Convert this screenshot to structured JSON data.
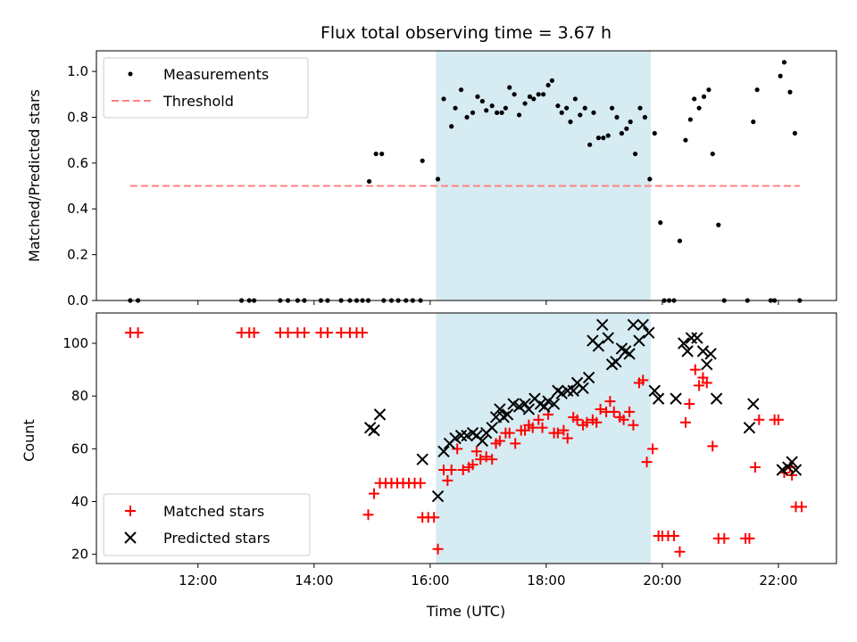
{
  "chart_data": [
    {
      "type": "scatter",
      "title": "Flux total observing time = 3.67 h",
      "xlabel": "",
      "ylabel": "Matched/Predicted stars",
      "xlim": [
        "10:15",
        "23:00"
      ],
      "ylim": [
        0,
        1.09
      ],
      "yticks": [
        "0.0",
        "0.2",
        "0.4",
        "0.6",
        "0.8",
        "1.0"
      ],
      "highlight": {
        "from": "16:06",
        "to": "19:48",
        "color": "#add8e6"
      },
      "legend_position": "top-left",
      "series": [
        {
          "name": "Measurements",
          "marker": "dot",
          "color": "#000000",
          "points": [
            [
              "10:50",
              0
            ],
            [
              "10:58",
              0
            ],
            [
              "12:45",
              0
            ],
            [
              "12:53",
              0
            ],
            [
              "12:58",
              0
            ],
            [
              "13:25",
              0
            ],
            [
              "13:33",
              0
            ],
            [
              "13:43",
              0
            ],
            [
              "13:50",
              0
            ],
            [
              "14:07",
              0
            ],
            [
              "14:14",
              0
            ],
            [
              "14:28",
              0
            ],
            [
              "14:37",
              0
            ],
            [
              "14:44",
              0
            ],
            [
              "14:50",
              0
            ],
            [
              "14:56",
              0
            ],
            [
              "15:12",
              0
            ],
            [
              "15:20",
              0
            ],
            [
              "15:27",
              0
            ],
            [
              "15:35",
              0
            ],
            [
              "15:42",
              0
            ],
            [
              "15:50",
              0
            ],
            [
              "14:57",
              0.52
            ],
            [
              "15:04",
              0.64
            ],
            [
              "15:10",
              0.64
            ],
            [
              "15:52",
              0.61
            ],
            [
              "16:08",
              0.53
            ],
            [
              "16:14",
              0.88
            ],
            [
              "16:22",
              0.76
            ],
            [
              "16:26",
              0.84
            ],
            [
              "16:32",
              0.92
            ],
            [
              "16:38",
              0.8
            ],
            [
              "16:44",
              0.82
            ],
            [
              "16:49",
              0.89
            ],
            [
              "16:54",
              0.87
            ],
            [
              "16:58",
              0.83
            ],
            [
              "17:04",
              0.85
            ],
            [
              "17:09",
              0.82
            ],
            [
              "17:14",
              0.82
            ],
            [
              "17:18",
              0.84
            ],
            [
              "17:22",
              0.93
            ],
            [
              "17:27",
              0.9
            ],
            [
              "17:32",
              0.81
            ],
            [
              "17:38",
              0.86
            ],
            [
              "17:43",
              0.89
            ],
            [
              "17:47",
              0.88
            ],
            [
              "17:52",
              0.9
            ],
            [
              "17:57",
              0.9
            ],
            [
              "18:02",
              0.94
            ],
            [
              "18:06",
              0.96
            ],
            [
              "18:12",
              0.85
            ],
            [
              "18:16",
              0.82
            ],
            [
              "18:21",
              0.84
            ],
            [
              "18:25",
              0.78
            ],
            [
              "18:30",
              0.88
            ],
            [
              "18:35",
              0.81
            ],
            [
              "18:40",
              0.84
            ],
            [
              "18:45",
              0.68
            ],
            [
              "18:49",
              0.82
            ],
            [
              "18:54",
              0.71
            ],
            [
              "18:59",
              0.71
            ],
            [
              "19:04",
              0.72
            ],
            [
              "19:08",
              0.84
            ],
            [
              "19:13",
              0.8
            ],
            [
              "19:18",
              0.73
            ],
            [
              "19:23",
              0.75
            ],
            [
              "19:27",
              0.78
            ],
            [
              "19:32",
              0.64
            ],
            [
              "19:37",
              0.84
            ],
            [
              "19:42",
              0.8
            ],
            [
              "19:47",
              0.53
            ],
            [
              "19:52",
              0.73
            ],
            [
              "19:58",
              0.34
            ],
            [
              "20:02",
              0
            ],
            [
              "20:07",
              0
            ],
            [
              "20:12",
              0
            ],
            [
              "20:18",
              0.26
            ],
            [
              "20:24",
              0.7
            ],
            [
              "20:29",
              0.79
            ],
            [
              "20:33",
              0.88
            ],
            [
              "20:38",
              0.84
            ],
            [
              "20:43",
              0.89
            ],
            [
              "20:48",
              0.92
            ],
            [
              "20:52",
              0.64
            ],
            [
              "20:58",
              0.33
            ],
            [
              "21:04",
              0
            ],
            [
              "21:28",
              0
            ],
            [
              "21:34",
              0.78
            ],
            [
              "21:38",
              0.92
            ],
            [
              "21:52",
              0
            ],
            [
              "21:56",
              0
            ],
            [
              "22:02",
              0.98
            ],
            [
              "22:06",
              1.04
            ],
            [
              "22:12",
              0.91
            ],
            [
              "22:17",
              0.73
            ],
            [
              "22:22",
              0
            ]
          ]
        },
        {
          "name": "Threshold",
          "style": "dashed",
          "color": "#ff8080",
          "points": [
            [
              "10:50",
              0.5
            ],
            [
              "22:22",
              0.5
            ]
          ]
        }
      ]
    },
    {
      "type": "scatter",
      "title": "",
      "xlabel": "Time (UTC)",
      "ylabel": "Count",
      "xlim": [
        "10:15",
        "23:00"
      ],
      "ylim": [
        16.5,
        111.5
      ],
      "xticks": [
        "12:00",
        "14:00",
        "16:00",
        "18:00",
        "20:00",
        "22:00"
      ],
      "yticks": [
        "20",
        "40",
        "60",
        "80",
        "100"
      ],
      "highlight": {
        "from": "16:06",
        "to": "19:48",
        "color": "#add8e6"
      },
      "legend_position": "bottom-left",
      "series": [
        {
          "name": "Matched stars",
          "marker": "plus",
          "color": "#ff0000",
          "points": [
            [
              "10:50",
              104
            ],
            [
              "10:58",
              104
            ],
            [
              "12:45",
              104
            ],
            [
              "12:53",
              104
            ],
            [
              "12:58",
              104
            ],
            [
              "13:25",
              104
            ],
            [
              "13:33",
              104
            ],
            [
              "13:43",
              104
            ],
            [
              "13:50",
              104
            ],
            [
              "14:07",
              104
            ],
            [
              "14:14",
              104
            ],
            [
              "14:28",
              104
            ],
            [
              "14:37",
              104
            ],
            [
              "14:44",
              104
            ],
            [
              "14:50",
              104
            ],
            [
              "14:56",
              35
            ],
            [
              "15:02",
              43
            ],
            [
              "15:08",
              47
            ],
            [
              "15:14",
              47
            ],
            [
              "15:20",
              47
            ],
            [
              "15:26",
              47
            ],
            [
              "15:32",
              47
            ],
            [
              "15:38",
              47
            ],
            [
              "15:44",
              47
            ],
            [
              "15:50",
              47
            ],
            [
              "15:52",
              34
            ],
            [
              "15:58",
              34
            ],
            [
              "16:04",
              34
            ],
            [
              "16:08",
              22
            ],
            [
              "16:14",
              52
            ],
            [
              "16:18",
              48
            ],
            [
              "16:22",
              52
            ],
            [
              "16:28",
              60
            ],
            [
              "16:34",
              52
            ],
            [
              "16:40",
              53
            ],
            [
              "16:44",
              54
            ],
            [
              "16:48",
              59
            ],
            [
              "16:52",
              56
            ],
            [
              "16:58",
              57
            ],
            [
              "17:04",
              56
            ],
            [
              "17:08",
              62
            ],
            [
              "17:12",
              63
            ],
            [
              "17:18",
              66
            ],
            [
              "17:22",
              66
            ],
            [
              "17:28",
              62
            ],
            [
              "17:34",
              67
            ],
            [
              "17:38",
              67
            ],
            [
              "17:42",
              69
            ],
            [
              "17:46",
              68
            ],
            [
              "17:52",
              71
            ],
            [
              "17:56",
              68
            ],
            [
              "18:02",
              73
            ],
            [
              "18:08",
              66
            ],
            [
              "18:12",
              66
            ],
            [
              "18:18",
              67
            ],
            [
              "18:22",
              64
            ],
            [
              "18:28",
              72
            ],
            [
              "18:32",
              71
            ],
            [
              "18:38",
              69
            ],
            [
              "18:42",
              70
            ],
            [
              "18:48",
              71
            ],
            [
              "18:52",
              70
            ],
            [
              "18:56",
              75
            ],
            [
              "19:02",
              74
            ],
            [
              "19:06",
              78
            ],
            [
              "19:10",
              74
            ],
            [
              "19:16",
              72
            ],
            [
              "19:20",
              71
            ],
            [
              "19:26",
              74
            ],
            [
              "19:30",
              69
            ],
            [
              "19:36",
              85
            ],
            [
              "19:40",
              86
            ],
            [
              "19:44",
              55
            ],
            [
              "19:50",
              60
            ],
            [
              "19:56",
              27
            ],
            [
              "20:00",
              27
            ],
            [
              "20:06",
              27
            ],
            [
              "20:12",
              27
            ],
            [
              "20:18",
              21
            ],
            [
              "20:24",
              70
            ],
            [
              "20:28",
              77
            ],
            [
              "20:34",
              90
            ],
            [
              "20:38",
              84
            ],
            [
              "20:42",
              87
            ],
            [
              "20:46",
              85
            ],
            [
              "20:52",
              61
            ],
            [
              "20:58",
              26
            ],
            [
              "21:04",
              26
            ],
            [
              "21:26",
              26
            ],
            [
              "21:30",
              26
            ],
            [
              "21:36",
              53
            ],
            [
              "21:40",
              71
            ],
            [
              "21:56",
              71
            ],
            [
              "22:00",
              71
            ],
            [
              "22:06",
              51
            ],
            [
              "22:12",
              53
            ],
            [
              "22:14",
              50
            ],
            [
              "22:18",
              38
            ],
            [
              "22:24",
              38
            ]
          ]
        },
        {
          "name": "Predicted stars",
          "marker": "x",
          "color": "#000000",
          "points": [
            [
              "14:58",
              68
            ],
            [
              "15:02",
              67
            ],
            [
              "15:08",
              73
            ],
            [
              "15:52",
              56
            ],
            [
              "16:08",
              42
            ],
            [
              "16:14",
              59
            ],
            [
              "16:20",
              62
            ],
            [
              "16:26",
              64
            ],
            [
              "16:32",
              65
            ],
            [
              "16:38",
              65
            ],
            [
              "16:44",
              66
            ],
            [
              "16:48",
              65
            ],
            [
              "16:54",
              63
            ],
            [
              "16:58",
              66
            ],
            [
              "17:04",
              68
            ],
            [
              "17:08",
              72
            ],
            [
              "17:12",
              75
            ],
            [
              "17:16",
              72
            ],
            [
              "17:20",
              73
            ],
            [
              "17:26",
              77
            ],
            [
              "17:32",
              76
            ],
            [
              "17:38",
              77
            ],
            [
              "17:42",
              75
            ],
            [
              "17:48",
              79
            ],
            [
              "17:54",
              77
            ],
            [
              "17:58",
              76
            ],
            [
              "18:02",
              78
            ],
            [
              "18:08",
              77
            ],
            [
              "18:12",
              82
            ],
            [
              "18:16",
              81
            ],
            [
              "18:22",
              82
            ],
            [
              "18:28",
              82
            ],
            [
              "18:32",
              85
            ],
            [
              "18:38",
              83
            ],
            [
              "18:44",
              87
            ],
            [
              "18:48",
              101
            ],
            [
              "18:54",
              99
            ],
            [
              "18:58",
              107
            ],
            [
              "19:04",
              102
            ],
            [
              "19:08",
              92
            ],
            [
              "19:12",
              93
            ],
            [
              "19:18",
              98
            ],
            [
              "19:22",
              97
            ],
            [
              "19:26",
              96
            ],
            [
              "19:30",
              107
            ],
            [
              "19:36",
              101
            ],
            [
              "19:40",
              107
            ],
            [
              "19:46",
              104
            ],
            [
              "19:52",
              82
            ],
            [
              "19:56",
              79
            ],
            [
              "20:14",
              79
            ],
            [
              "20:22",
              100
            ],
            [
              "20:26",
              97
            ],
            [
              "20:30",
              102
            ],
            [
              "20:36",
              102
            ],
            [
              "20:42",
              97
            ],
            [
              "20:46",
              92
            ],
            [
              "20:50",
              96
            ],
            [
              "20:56",
              79
            ],
            [
              "21:30",
              68
            ],
            [
              "21:34",
              77
            ],
            [
              "22:04",
              52
            ],
            [
              "22:10",
              53
            ],
            [
              "22:14",
              55
            ],
            [
              "22:18",
              52
            ]
          ]
        }
      ]
    }
  ]
}
